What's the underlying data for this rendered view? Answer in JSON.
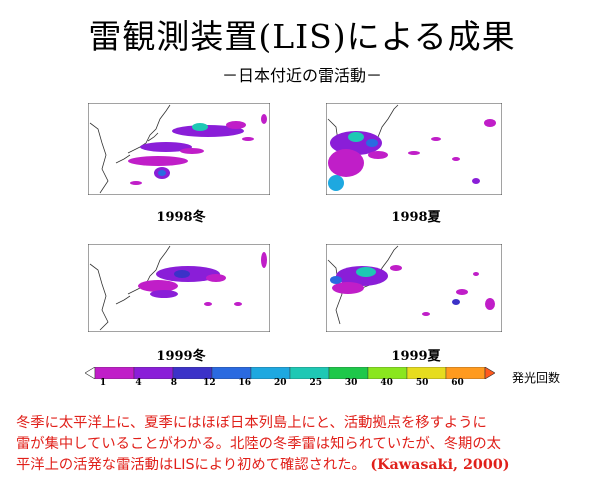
{
  "title": "雷観測装置(LIS)による成果",
  "subtitle": "－日本付近の雷活動－",
  "panels": [
    {
      "label": "1998冬"
    },
    {
      "label": "1998夏"
    },
    {
      "label": "1999冬"
    },
    {
      "label": "1999夏"
    }
  ],
  "colorbar": {
    "ticks": [
      "1",
      "4",
      "8",
      "12",
      "16",
      "20",
      "25",
      "30",
      "40",
      "50",
      "60"
    ],
    "unit": "発光回数",
    "colors": [
      "#ffffff",
      "#c01ec8",
      "#8a1ed8",
      "#3c32c8",
      "#2a6ae0",
      "#1ea8e0",
      "#1ec8b4",
      "#1ec84a",
      "#8ae61e",
      "#e6dc1e",
      "#ff9a1e",
      "#ff5a1e"
    ]
  },
  "caption": {
    "lines": [
      "冬季に太平洋上に、夏季にはほぼ日本列島上にと、活動拠点を移すように",
      "雷が集中していることがわかる。北陸の冬季雷は知られていたが、冬期の太",
      "平洋上の活発な雷活動はLISにより初めて確認された。"
    ],
    "citation": "(Kawasaki, 2000)"
  }
}
